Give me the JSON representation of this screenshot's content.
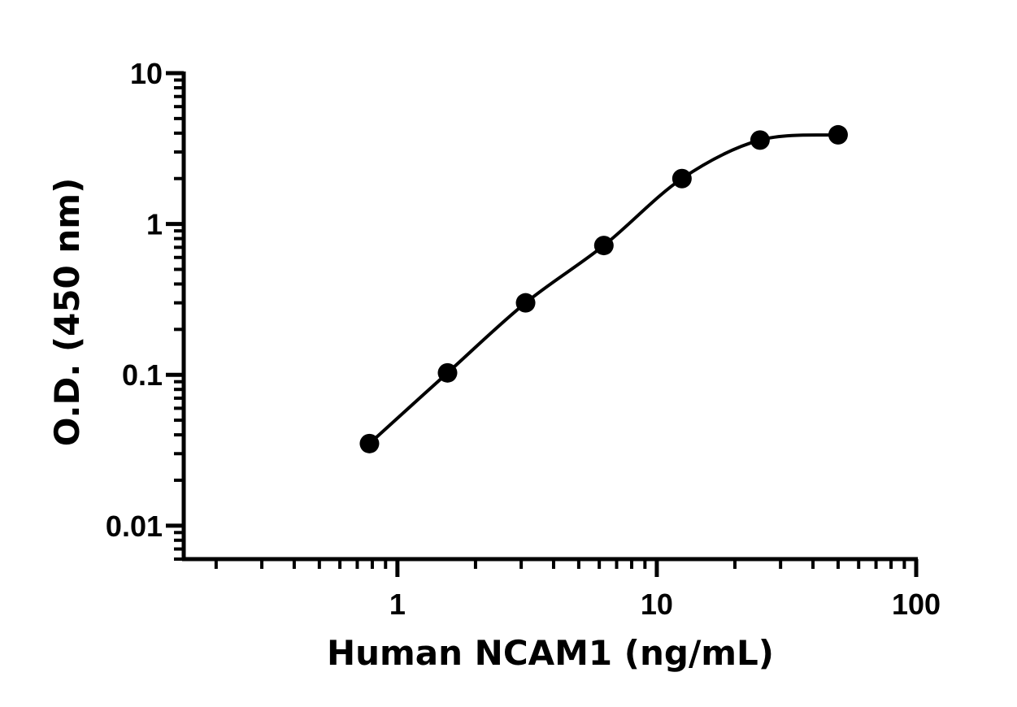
{
  "chart_data": {
    "type": "scatter",
    "title": "",
    "xlabel": "Human NCAM1 (ng/mL)",
    "ylabel": "O.D. (450 nm)",
    "xscale": "log",
    "yscale": "log",
    "xlim": [
      0.15,
      100
    ],
    "ylim": [
      0.006,
      10
    ],
    "x_ticks": [
      {
        "value": 1,
        "label": "1"
      },
      {
        "value": 10,
        "label": "10"
      },
      {
        "value": 100,
        "label": "100"
      }
    ],
    "y_ticks": [
      {
        "value": 0.01,
        "label": "0.01"
      },
      {
        "value": 0.1,
        "label": "0.1"
      },
      {
        "value": 1,
        "label": "1"
      },
      {
        "value": 10,
        "label": "10"
      }
    ],
    "grid": false,
    "legend": "none",
    "series": [
      {
        "name": "Human NCAM1",
        "x": [
          0.78,
          1.56,
          3.12,
          6.25,
          12.5,
          25,
          50
        ],
        "y": [
          0.035,
          0.103,
          0.3,
          0.72,
          2.0,
          3.6,
          3.9
        ],
        "color": "#000000",
        "fit": "4PL curve"
      }
    ]
  }
}
